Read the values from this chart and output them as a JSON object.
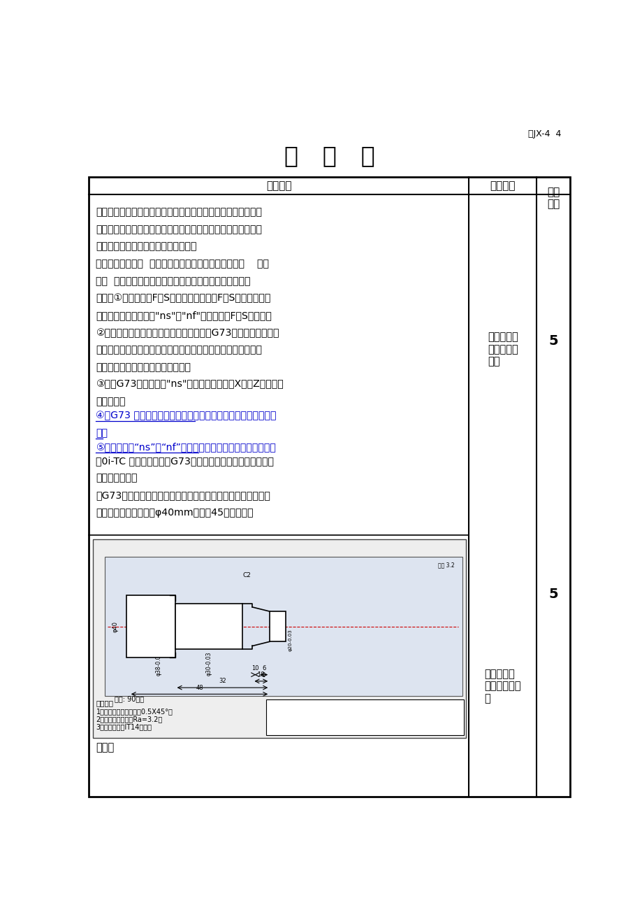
{
  "page_bg": "#ffffff",
  "header_text": "表JX-4  4",
  "title": "教   案   纸",
  "col1_header": "教学过程",
  "col2_header": "学生活动",
  "col3_header": "学时\n分配",
  "black_color": "#000000",
  "blue_color": "#0000cc",
  "red_color": "#cc0000",
  "row1_black_lines": [
    "作用：主要用于车削固定轨迹的轮廓。这种复合循环，可以高效",
    "地切削铸造成形、锻造成形或已粗车成形的工件。（递增或递减",
    "类的轴类零件也能加工但是浪费时间）",
    "性质：非模态指令  主要加工非递增或递减类的轴类零件    仿形",
    "加工  粗加工的刀具路径由系统根据精加工尺寸自动设定。",
    "注意：①、指令中的F、S指粗加工循环中的F、S值，该值一经",
    "指定，则在程序段段号\"ns\"和\"nf\"之间所有的F和S均无效。",
    "②、对不具备类似成形条件的工件，如采用G73进行编程与加工，",
    "反而会增加刀具在切削过程中的空行程，而且也不便于计算粗车",
    "余量。（比如成规律的递增或递减）",
    "③、在G73程序段中，\"ns\"所指程序段可以向X轴或Z轴的任意",
    "方向进刀。"
  ],
  "row1_blue_lines": [
    "④、G73 循环加工的轮廓形状，没有单调递增或单调递减形式的",
    "限制"
  ],
  "row1_part5_blue": "⑤、不可以在“ns”和“nf”之间套用子程序但是可以套用宏程序",
  "row1_part5_black": [
    "（0i-TC 以上系统），且G73粗加工结束后刀具返回到定位点",
    "（二）举例应用",
    "用G73指令编写零件右端轮廓程序有足够的夹持长度，外形加工",
    "完成后直接切断，毛坯φ40mm材料：45号钢棒料。"
  ],
  "col2_row1_text": "掌握指令使\n用中的注意\n事项",
  "col3_row1_text": "5",
  "col2_row2_text": "找出编程规\n律，并做好笔\n记",
  "col3_row2_text": "5",
  "program_label": "程序：",
  "tech_req_title": "技术要求",
  "tech_req_lines": [
    "1、锐角倒钝，未注倒角0.5X45°。",
    "2、未注表面粗糙度Ra=3.2。",
    "3、未注公差按IT14执行。"
  ],
  "work_time": "工时: 90分钟"
}
